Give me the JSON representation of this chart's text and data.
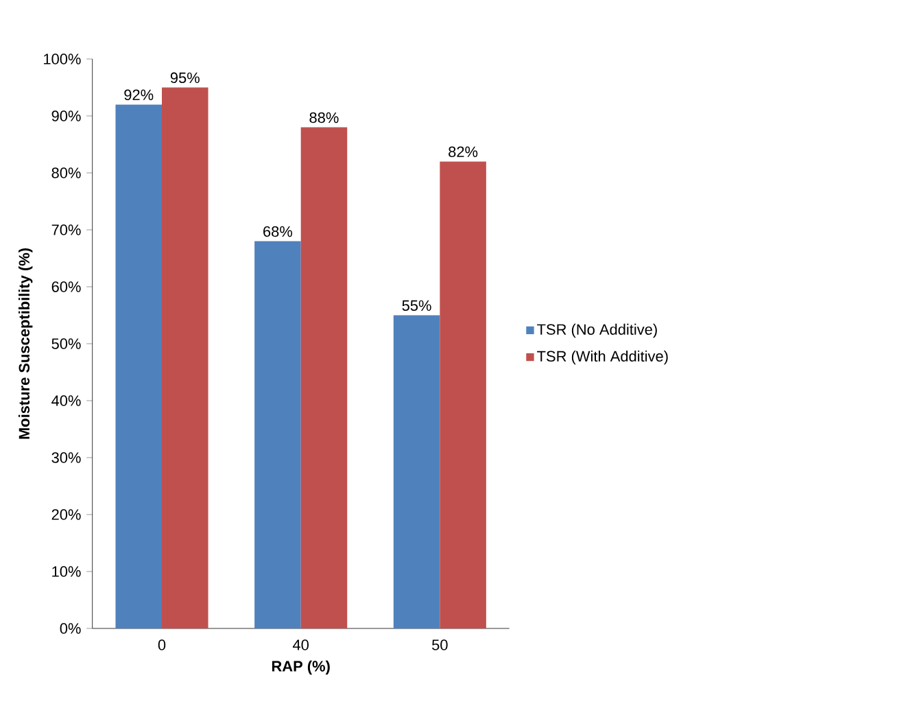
{
  "chart_data": {
    "type": "bar",
    "xlabel": "RAP (%)",
    "ylabel": "Moisture Susceptibility (%)",
    "categories": [
      "0",
      "40",
      "50"
    ],
    "series": [
      {
        "name": "TSR (No Additive)",
        "color": "#4f81bd",
        "values": [
          92,
          68,
          55
        ],
        "value_labels": [
          "92%",
          "68%",
          "55%"
        ]
      },
      {
        "name": "TSR (With Additive)",
        "color": "#c0504d",
        "values": [
          95,
          88,
          82
        ],
        "value_labels": [
          "95%",
          "88%",
          "82%"
        ]
      }
    ],
    "ylim": [
      0,
      100
    ],
    "yticks": [
      {
        "value": 0,
        "label": "0%"
      },
      {
        "value": 10,
        "label": "10%"
      },
      {
        "value": 20,
        "label": "20%"
      },
      {
        "value": 30,
        "label": "30%"
      },
      {
        "value": 40,
        "label": "40%"
      },
      {
        "value": 50,
        "label": "50%"
      },
      {
        "value": 60,
        "label": "60%"
      },
      {
        "value": 70,
        "label": "70%"
      },
      {
        "value": 80,
        "label": "80%"
      },
      {
        "value": 90,
        "label": "90%"
      },
      {
        "value": 100,
        "label": "100%"
      }
    ],
    "grid": false,
    "legend": "right"
  }
}
